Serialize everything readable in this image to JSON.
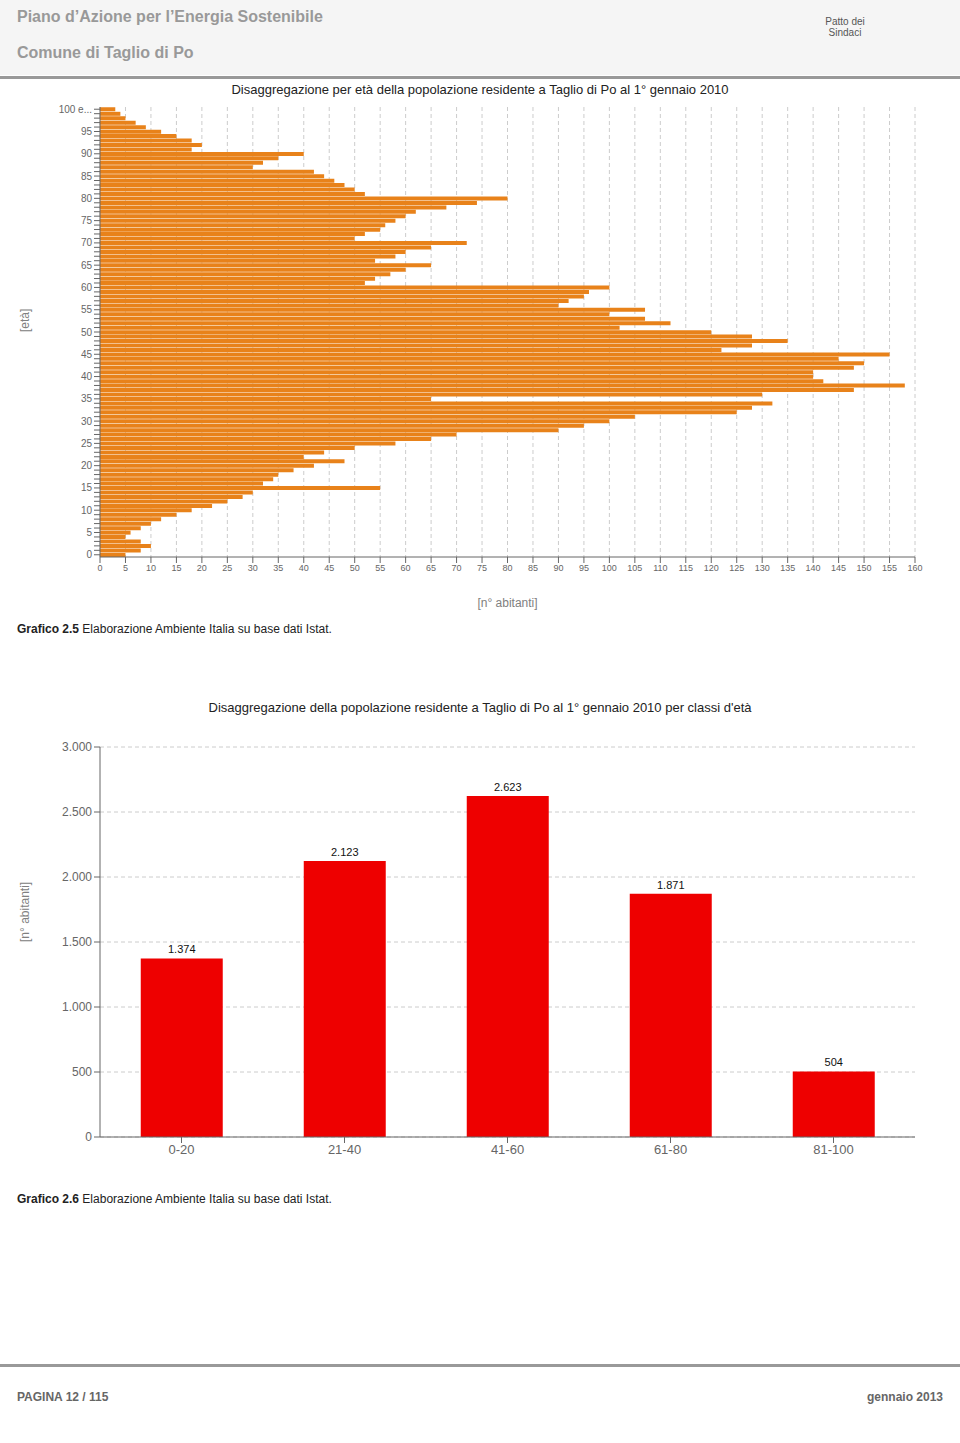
{
  "chart_data": [
    {
      "type": "bar",
      "orientation": "horizontal",
      "title": "Disaggregazione per età della popolazione residente a Taglio di Po al 1° gennaio 2010",
      "xlabel": "[n° abitanti]",
      "ylabel": "[età]",
      "categories": [
        "100 e...",
        null,
        null,
        null,
        null,
        "95",
        null,
        null,
        null,
        null,
        "90",
        null,
        null,
        null,
        null,
        "85",
        null,
        null,
        null,
        null,
        "80",
        null,
        null,
        null,
        null,
        "75",
        null,
        null,
        null,
        null,
        "70",
        null,
        null,
        null,
        null,
        "65",
        null,
        null,
        null,
        null,
        "60",
        null,
        null,
        null,
        null,
        "55",
        null,
        null,
        null,
        null,
        "50",
        null,
        null,
        null,
        null,
        "45",
        null,
        null,
        null,
        null,
        "40",
        null,
        null,
        null,
        null,
        "35",
        null,
        null,
        null,
        null,
        "30",
        null,
        null,
        null,
        null,
        "25",
        null,
        null,
        null,
        null,
        "20",
        null,
        null,
        null,
        null,
        "15",
        null,
        null,
        null,
        null,
        "10",
        null,
        null,
        null,
        null,
        "5",
        null,
        null,
        null,
        null,
        "0"
      ],
      "values": [
        3,
        4,
        5,
        7,
        9,
        12,
        15,
        18,
        20,
        18,
        40,
        35,
        32,
        30,
        42,
        44,
        46,
        48,
        50,
        52,
        80,
        74,
        68,
        62,
        60,
        58,
        56,
        55,
        52,
        50,
        72,
        65,
        60,
        58,
        54,
        65,
        60,
        57,
        54,
        52,
        100,
        96,
        95,
        92,
        90,
        107,
        100,
        107,
        112,
        102,
        120,
        128,
        135,
        128,
        122,
        155,
        145,
        150,
        148,
        140,
        140,
        142,
        158,
        148,
        130,
        65,
        132,
        128,
        125,
        105,
        100,
        95,
        90,
        70,
        65,
        58,
        50,
        44,
        40,
        48,
        42,
        38,
        35,
        34,
        32,
        55,
        30,
        28,
        25,
        22,
        18,
        15,
        12,
        10,
        8,
        6,
        5,
        8,
        10,
        8,
        5
      ],
      "color": "#E8821A",
      "xlim": [
        0,
        160
      ],
      "xticks": [
        0,
        5,
        10,
        15,
        20,
        25,
        30,
        35,
        40,
        45,
        50,
        55,
        60,
        65,
        70,
        75,
        80,
        85,
        90,
        95,
        100,
        105,
        110,
        115,
        120,
        125,
        130,
        135,
        140,
        145,
        150,
        155,
        160
      ],
      "grid": true,
      "annotations": [
        "Grafico 2.5",
        " Elaborazione Ambiente Italia su base dati Istat."
      ]
    },
    {
      "type": "bar",
      "title": "Disaggregazione della popolazione residente a Taglio di Po al 1° gennaio 2010 per classi d'età",
      "ylabel": "[n° abitanti]",
      "categories": [
        "0-20",
        "21-40",
        "41-60",
        "61-80",
        "81-100"
      ],
      "values": [
        1374,
        2123,
        2623,
        1871,
        504
      ],
      "value_labels": [
        "1.374",
        "2.123",
        "2.623",
        "1.871",
        "504"
      ],
      "data_labels": true,
      "color": "#EE0000",
      "ylim": [
        0,
        3000
      ],
      "yticks": [
        0,
        500,
        {
          "value": 1000,
          "label": "1.000"
        },
        {
          "value": 1500,
          "label": "1.500"
        },
        {
          "value": 2000,
          "label": "2.000"
        },
        {
          "value": 2500,
          "label": "2.500"
        },
        {
          "value": 3000,
          "label": "3.000"
        }
      ],
      "grid": true,
      "annotations": [
        "Grafico 2.6",
        " Elaborazione Ambiente Italia su base dati Istat."
      ]
    }
  ],
  "annotations": [
    "Piano d’Azione per l’Energia Sostenibile",
    "Comune di Taglio di Po",
    "Patto dei\nSindaci",
    "PAGINA 12 / 115",
    "gennaio 2013"
  ]
}
